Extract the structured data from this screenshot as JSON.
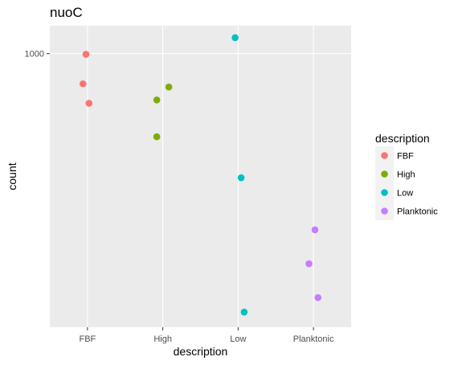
{
  "chart_data": {
    "type": "scatter",
    "title": "nuoC",
    "xlabel": "description",
    "ylabel": "count",
    "categories": [
      "FBF",
      "High",
      "Low",
      "Planktonic"
    ],
    "y_scale": "log",
    "ylim": [
      470,
      1080
    ],
    "y_ticks": [
      1000
    ],
    "y_tick_labels": [
      "1000"
    ],
    "grid": true,
    "legend": {
      "title": "description",
      "position": "right",
      "entries": [
        "FBF",
        "High",
        "Low",
        "Planktonic"
      ]
    },
    "colors": {
      "FBF": "#F8766D",
      "High": "#7CAE00",
      "Low": "#00BFC4",
      "Planktonic": "#C77CFF"
    },
    "series": [
      {
        "name": "FBF",
        "points": [
          {
            "category": "FBF",
            "jitter": -0.02,
            "y": 998
          },
          {
            "category": "FBF",
            "jitter": -0.06,
            "y": 920
          },
          {
            "category": "FBF",
            "jitter": 0.02,
            "y": 872
          }
        ]
      },
      {
        "name": "High",
        "points": [
          {
            "category": "High",
            "jitter": 0.08,
            "y": 912
          },
          {
            "category": "High",
            "jitter": -0.08,
            "y": 880
          },
          {
            "category": "High",
            "jitter": -0.08,
            "y": 795
          }
        ]
      },
      {
        "name": "Low",
        "points": [
          {
            "category": "Low",
            "jitter": -0.04,
            "y": 1045
          },
          {
            "category": "Low",
            "jitter": 0.04,
            "y": 710
          },
          {
            "category": "Low",
            "jitter": 0.08,
            "y": 490
          }
        ]
      },
      {
        "name": "Planktonic",
        "points": [
          {
            "category": "Planktonic",
            "jitter": 0.02,
            "y": 615
          },
          {
            "category": "Planktonic",
            "jitter": -0.06,
            "y": 560
          },
          {
            "category": "Planktonic",
            "jitter": 0.06,
            "y": 510
          }
        ]
      }
    ]
  }
}
